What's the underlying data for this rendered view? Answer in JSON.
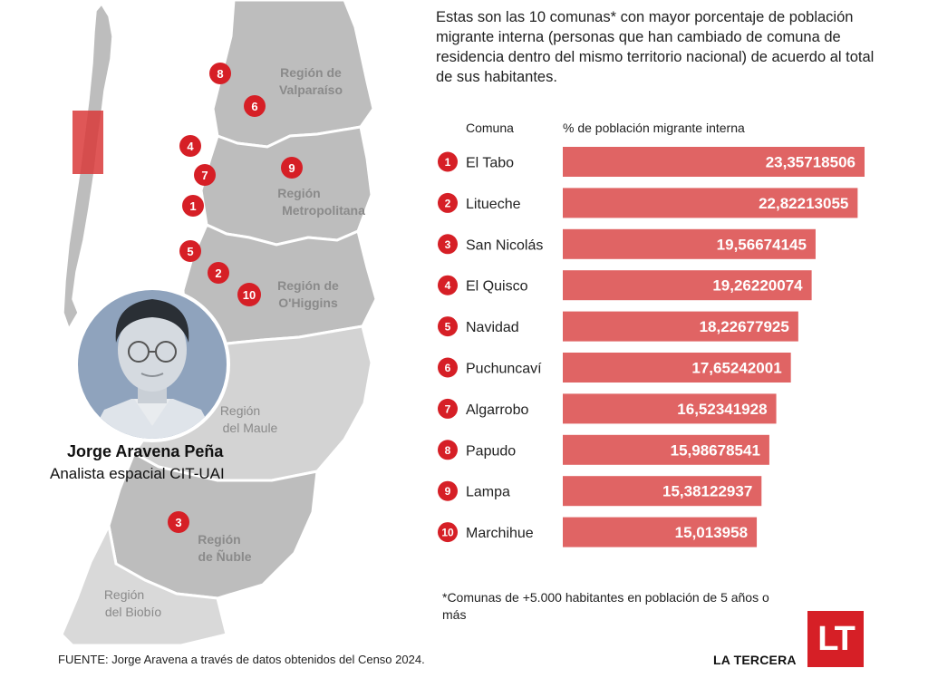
{
  "intro_text": "Estas son las 10 comunas* con mayor porcentaje de población migrante interna (personas que han cambiado de comuna de residencia dentro del mismo territorio nacional) de acuerdo al total de sus habitantes.",
  "columns": {
    "comuna": "Comuna",
    "pct": "% de población migrante interna"
  },
  "colors": {
    "bar": "#e06464",
    "rank": "#d61f26",
    "map_region": "#bdbdbd",
    "map_border": "#ffffff",
    "highlight": "#d93a3a"
  },
  "chart_data": {
    "type": "bar",
    "orientation": "horizontal",
    "xlim": [
      0,
      23.35718506
    ],
    "bars": [
      {
        "rank": "1",
        "label": "El Tabo",
        "value": 23.35718506,
        "value_text": "23,35718506"
      },
      {
        "rank": "2",
        "label": "Litueche",
        "value": 22.82213055,
        "value_text": "22,82213055"
      },
      {
        "rank": "3",
        "label": "San Nicolás",
        "value": 19.56674145,
        "value_text": "19,56674145"
      },
      {
        "rank": "4",
        "label": "El Quisco",
        "value": 19.26220074,
        "value_text": "19,26220074"
      },
      {
        "rank": "5",
        "label": "Navidad",
        "value": 18.22677925,
        "value_text": "18,22677925"
      },
      {
        "rank": "6",
        "label": "Puchuncaví",
        "value": 17.65242001,
        "value_text": "17,65242001"
      },
      {
        "rank": "7",
        "label": "Algarrobo",
        "value": 16.52341928,
        "value_text": "16,52341928"
      },
      {
        "rank": "8",
        "label": "Papudo",
        "value": 15.98678541,
        "value_text": "15,98678541"
      },
      {
        "rank": "9",
        "label": "Lampa",
        "value": 15.38122937,
        "value_text": "15,38122937"
      },
      {
        "rank": "10",
        "label": "Marchihue",
        "value": 15.013958,
        "value_text": "15,013958"
      }
    ]
  },
  "map": {
    "regions": {
      "valparaiso": [
        "Región de",
        "Valparaíso"
      ],
      "metropolitana": [
        "Región",
        "Metropolitana"
      ],
      "ohiggins": [
        "Región de",
        "O'Higgins"
      ],
      "maule": [
        "Región",
        "del Maule"
      ],
      "nuble": [
        "Región",
        "de Ñuble"
      ],
      "biobio": [
        "Región",
        "del Biobío"
      ]
    },
    "markers": [
      "8",
      "6",
      "4",
      "9",
      "7",
      "1",
      "5",
      "2",
      "10",
      "3"
    ]
  },
  "person": {
    "name": "Jorge Aravena Peña",
    "role": "Analista espacial CIT-UAI"
  },
  "footnote": "*Comunas de +5.000 habitantes en población de 5 años o más",
  "source": "FUENTE: Jorge Aravena a través de datos obtenidos del Censo 2024.",
  "brand": {
    "name": "LA TERCERA",
    "logo_text": "LT"
  }
}
